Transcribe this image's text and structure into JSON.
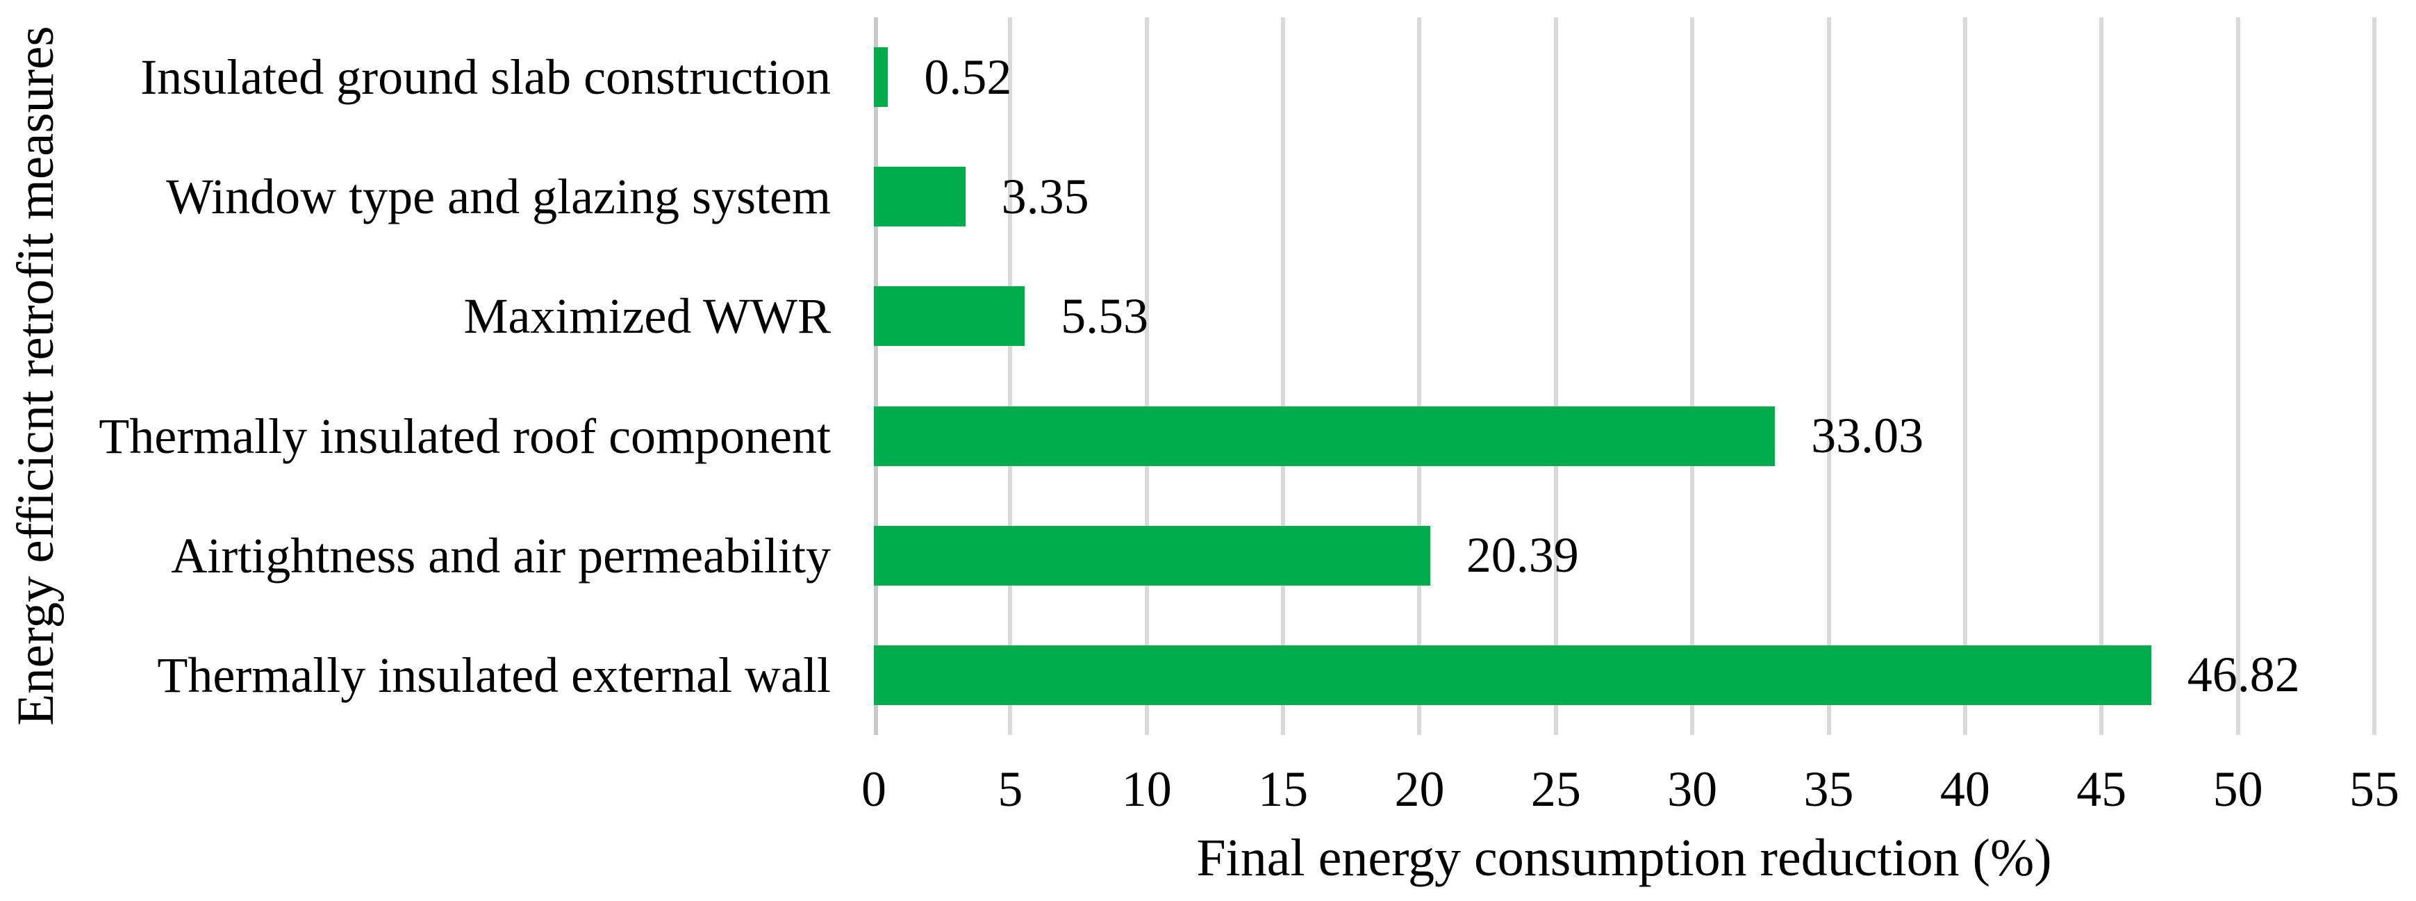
{
  "figure": {
    "background": "#ffffff"
  },
  "chart_data": {
    "type": "bar",
    "orientation": "horizontal",
    "title": "",
    "xlabel": "Final energy consumption reduction (%)",
    "ylabel": "Energy efficicnt retrofit measures",
    "categories": [
      "Insulated ground slab construction",
      "Window type and glazing system",
      "Maximized WWR",
      "Thermally insulated roof component",
      "Airtightness and air permeability",
      "Thermally insulated external wall"
    ],
    "values": [
      0.52,
      3.35,
      5.53,
      33.03,
      20.39,
      46.82
    ],
    "data_labels": [
      "0.52",
      "3.35",
      "5.53",
      "33.03",
      "20.39",
      "46.82"
    ],
    "xlim": [
      0,
      55
    ],
    "x_ticks": [
      0,
      5,
      10,
      15,
      20,
      25,
      30,
      35,
      40,
      45,
      50,
      55
    ],
    "grid": "vertical-gridlines",
    "legend": "none",
    "bar_color": "#00AC4C",
    "gridline_color": "#D9D9D9",
    "axis_line_color": "#C8C8C8",
    "text_color": "#000000"
  }
}
